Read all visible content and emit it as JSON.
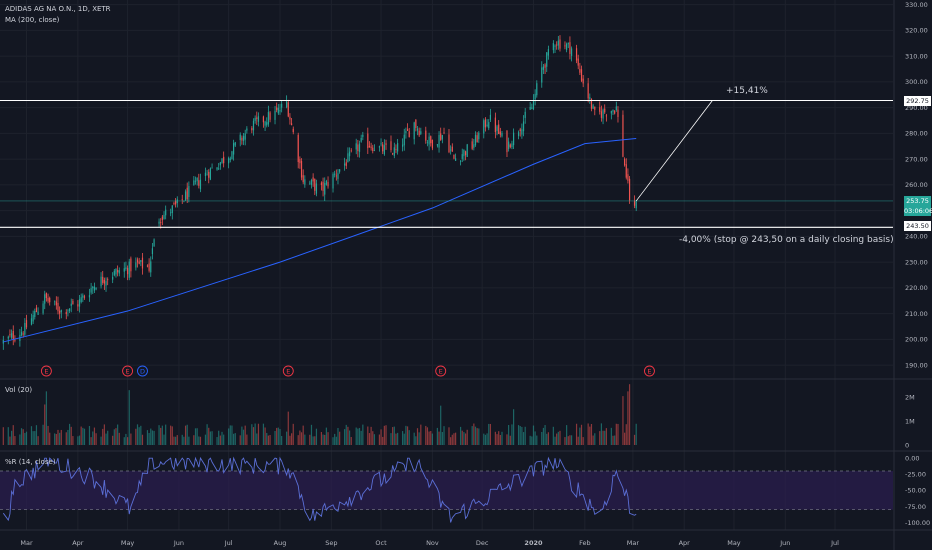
{
  "header": {
    "symbol": "ADIDAS AG NA O.N., 1D, XETR",
    "ma_label": "MA (200, close)",
    "vol_label": "Vol (20)",
    "wr_label": "%R (14, close)"
  },
  "annotations": {
    "gain": "+15,41%",
    "stop": "-4,00% (stop @ 243,50 on a  daily closing basis)"
  },
  "price_tags": {
    "resistance": "292.75",
    "current": "253.75",
    "countdown": "03:06:06",
    "stop": "243.50"
  },
  "event_markers": [
    {
      "label": "E",
      "date": "2019-03-13",
      "color": "#f23645"
    },
    {
      "label": "E",
      "date": "2019-05-01",
      "color": "#f23645"
    },
    {
      "label": "D",
      "date": "2019-05-10",
      "color": "#2962ff"
    },
    {
      "label": "E",
      "date": "2019-08-06",
      "color": "#f23645"
    },
    {
      "label": "E",
      "date": "2019-11-06",
      "color": "#f23645"
    },
    {
      "label": "E",
      "date": "2020-03-11",
      "color": "#f23645"
    }
  ],
  "colors": {
    "background": "#131722",
    "up": "#26a69a",
    "down": "#ef5350",
    "ma": "#2962ff",
    "wr_line": "#5b6fd6",
    "wr_band": "#2a1e4d",
    "lines": "#ffffff"
  },
  "chart_data": [
    {
      "type": "candlestick",
      "title": "ADIDAS AG NA O.N., 1D, XETR",
      "y_axis_side": "right",
      "y_ticks": [
        190,
        200,
        210,
        220,
        230,
        240,
        250,
        260,
        270,
        280,
        290,
        300,
        310,
        320,
        330
      ],
      "ylim": [
        185,
        331
      ],
      "x_ticks": [
        "Mar",
        "Apr",
        "May",
        "Jun",
        "Jul",
        "Aug",
        "Sep",
        "Oct",
        "Nov",
        "Dec",
        "2020",
        "Feb",
        "Mar",
        "Apr",
        "May",
        "Jun",
        "Jul"
      ],
      "x_tick_dates": [
        "2019-03-01",
        "2019-04-01",
        "2019-05-01",
        "2019-06-01",
        "2019-07-01",
        "2019-08-01",
        "2019-09-01",
        "2019-10-01",
        "2019-11-01",
        "2019-12-01",
        "2020-01-01",
        "2020-02-01",
        "2020-03-01",
        "2020-04-01",
        "2020-05-01",
        "2020-06-01",
        "2020-07-01"
      ],
      "xlim": [
        "2019-02-13",
        "2020-08-05"
      ],
      "date_unit": "date",
      "close_path": [
        {
          "date": "2019-02-15",
          "close": 199
        },
        {
          "date": "2019-02-28",
          "close": 204
        },
        {
          "date": "2019-03-12",
          "close": 216
        },
        {
          "date": "2019-03-22",
          "close": 211
        },
        {
          "date": "2019-04-01",
          "close": 214
        },
        {
          "date": "2019-04-12",
          "close": 222
        },
        {
          "date": "2019-04-24",
          "close": 226
        },
        {
          "date": "2019-05-07",
          "close": 229
        },
        {
          "date": "2019-05-14",
          "close": 228
        },
        {
          "date": "2019-05-20",
          "close": 247
        },
        {
          "date": "2019-05-31",
          "close": 252
        },
        {
          "date": "2019-06-15",
          "close": 263
        },
        {
          "date": "2019-06-30",
          "close": 271
        },
        {
          "date": "2019-07-15",
          "close": 283
        },
        {
          "date": "2019-07-30",
          "close": 288
        },
        {
          "date": "2019-08-05",
          "close": 292
        },
        {
          "date": "2019-08-09",
          "close": 280
        },
        {
          "date": "2019-08-15",
          "close": 262
        },
        {
          "date": "2019-08-26",
          "close": 258
        },
        {
          "date": "2019-09-10",
          "close": 269
        },
        {
          "date": "2019-09-20",
          "close": 277
        },
        {
          "date": "2019-09-30",
          "close": 274
        },
        {
          "date": "2019-10-10",
          "close": 273
        },
        {
          "date": "2019-10-21",
          "close": 284
        },
        {
          "date": "2019-10-31",
          "close": 276
        },
        {
          "date": "2019-11-08",
          "close": 280
        },
        {
          "date": "2019-11-14",
          "close": 270
        },
        {
          "date": "2019-11-25",
          "close": 275
        },
        {
          "date": "2019-12-05",
          "close": 286
        },
        {
          "date": "2019-12-16",
          "close": 275
        },
        {
          "date": "2019-12-31",
          "close": 290
        },
        {
          "date": "2020-01-06",
          "close": 305
        },
        {
          "date": "2020-01-14",
          "close": 316
        },
        {
          "date": "2020-01-24",
          "close": 313
        },
        {
          "date": "2020-01-31",
          "close": 300
        },
        {
          "date": "2020-02-07",
          "close": 287
        },
        {
          "date": "2020-02-20",
          "close": 290
        },
        {
          "date": "2020-02-24",
          "close": 272
        },
        {
          "date": "2020-02-28",
          "close": 255
        },
        {
          "date": "2020-03-02",
          "close": 250
        },
        {
          "date": "2020-03-03",
          "close": 253.75
        }
      ],
      "ma_path": [
        {
          "date": "2019-02-15",
          "value": 199
        },
        {
          "date": "2019-05-01",
          "value": 211
        },
        {
          "date": "2019-08-01",
          "value": 230
        },
        {
          "date": "2019-11-01",
          "value": 251
        },
        {
          "date": "2020-01-01",
          "value": 268
        },
        {
          "date": "2020-02-01",
          "value": 276
        },
        {
          "date": "2020-03-03",
          "value": 278
        }
      ],
      "horizontal_levels": [
        {
          "value": 292.75,
          "label": "292.75",
          "style": "solid-white"
        },
        {
          "value": 253.75,
          "label": "253.75",
          "style": "thin-teal"
        },
        {
          "value": 243.5,
          "label": "243.50",
          "style": "solid-white"
        }
      ],
      "trend_line": {
        "from": {
          "date": "2020-03-03",
          "value": 253.75
        },
        "to": {
          "date": "2020-04-18",
          "value": 292.75
        }
      }
    },
    {
      "type": "bar",
      "title": "Vol (20)",
      "y_ticks": [
        "2M",
        "1M",
        "0"
      ],
      "y_tick_values": [
        2000000,
        1000000,
        0
      ],
      "ylim": [
        0,
        2600000
      ],
      "range": [
        "2019-02-15",
        "2020-03-03"
      ],
      "typical_volume": 650000,
      "spikes": [
        {
          "date": "2019-03-12",
          "value": 1700000
        },
        {
          "date": "2019-03-13",
          "value": 2250000
        },
        {
          "date": "2019-05-02",
          "value": 2300000
        },
        {
          "date": "2019-08-06",
          "value": 1400000
        },
        {
          "date": "2019-11-06",
          "value": 1650000
        },
        {
          "date": "2019-12-20",
          "value": 1500000
        },
        {
          "date": "2020-02-24",
          "value": 2050000
        },
        {
          "date": "2020-02-27",
          "value": 2250000
        },
        {
          "date": "2020-02-28",
          "value": 2550000
        }
      ]
    },
    {
      "type": "line",
      "title": "%R (14, close)",
      "y_ticks": [
        "0.00",
        "-25.00",
        "-50.00",
        "-75.00",
        "-100.00"
      ],
      "y_tick_values": [
        0,
        -25,
        -50,
        -75,
        -100
      ],
      "ylim": [
        -110,
        8
      ],
      "band": [
        -80,
        -20
      ],
      "range": [
        "2019-02-15",
        "2020-03-03"
      ],
      "notable_points": [
        {
          "date": "2019-02-20",
          "value": -45
        },
        {
          "date": "2019-03-14",
          "value": -2
        },
        {
          "date": "2019-04-10",
          "value": -30
        },
        {
          "date": "2019-05-03",
          "value": -80
        },
        {
          "date": "2019-05-15",
          "value": -5
        },
        {
          "date": "2019-08-06",
          "value": -12
        },
        {
          "date": "2019-08-20",
          "value": -92
        },
        {
          "date": "2019-10-22",
          "value": -5
        },
        {
          "date": "2019-11-12",
          "value": -93
        },
        {
          "date": "2020-01-13",
          "value": -4
        },
        {
          "date": "2020-02-10",
          "value": -88
        },
        {
          "date": "2020-02-20",
          "value": -20
        },
        {
          "date": "2020-03-02",
          "value": -93
        },
        {
          "date": "2020-03-03",
          "value": -85
        }
      ]
    }
  ]
}
